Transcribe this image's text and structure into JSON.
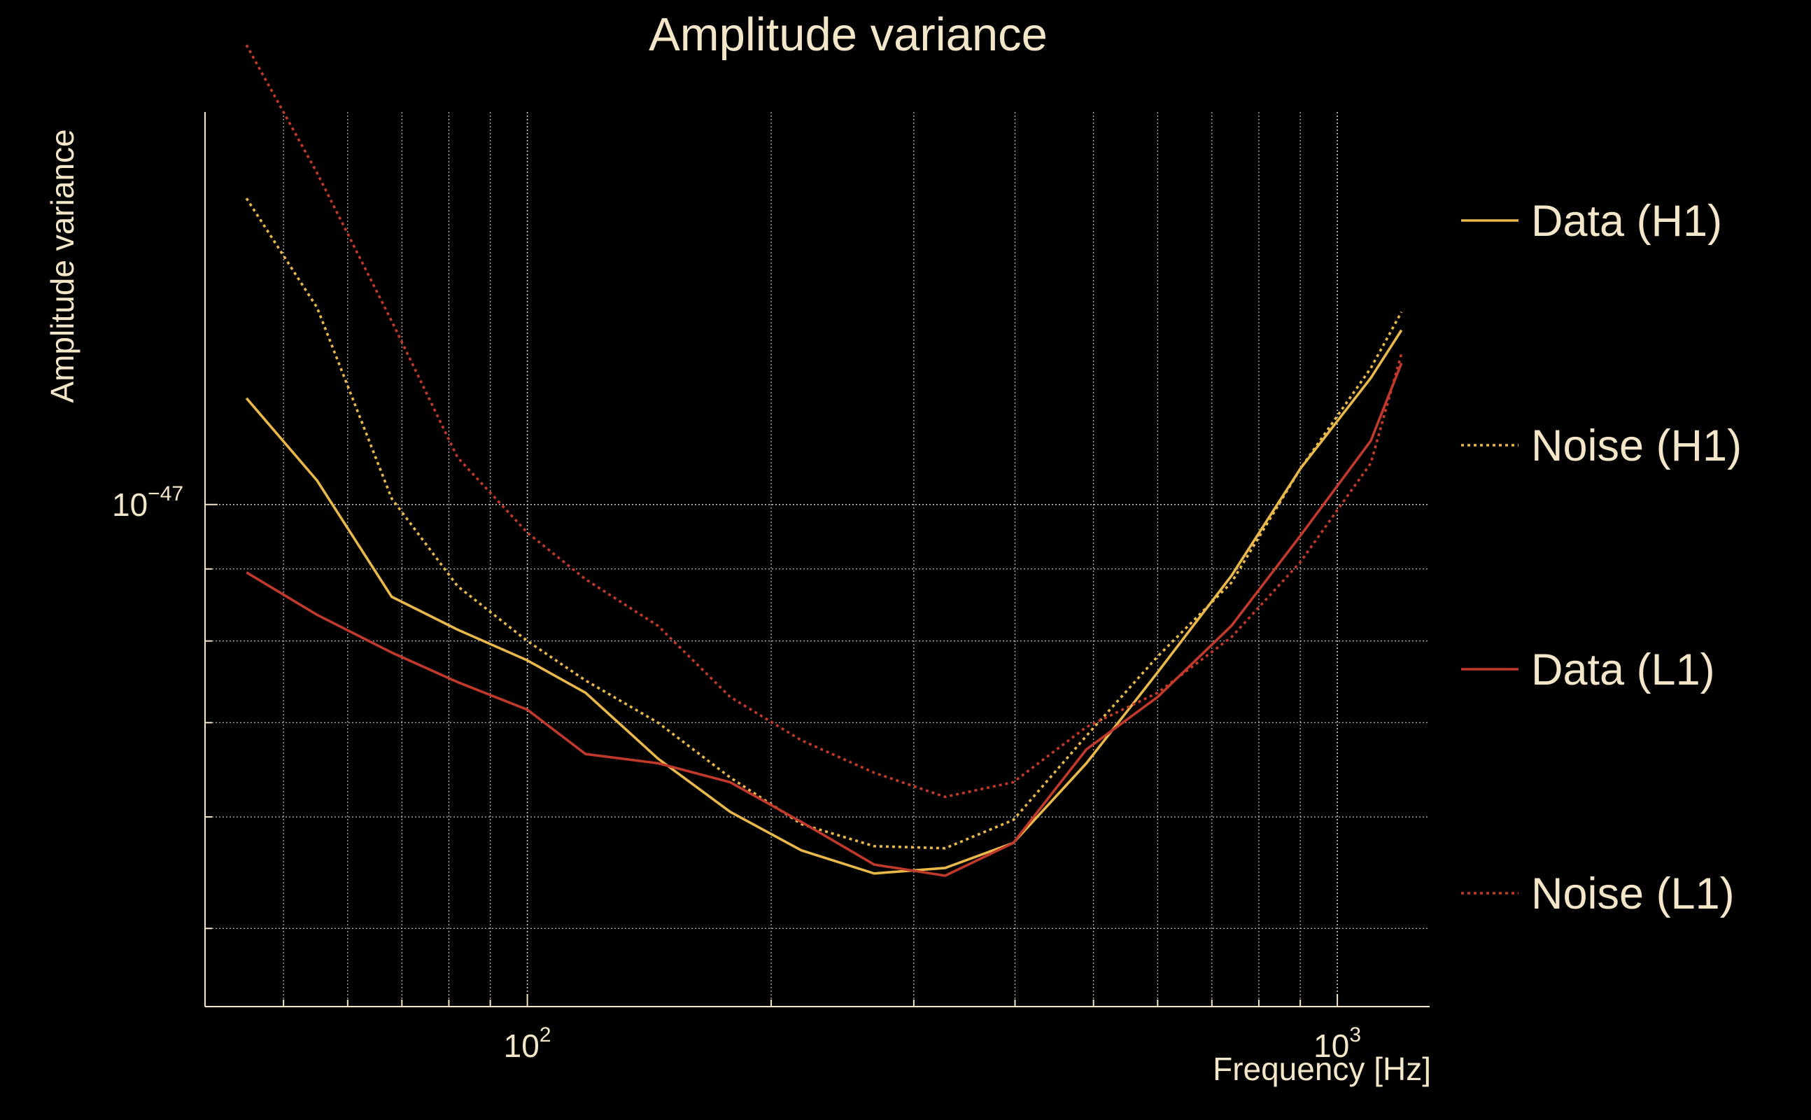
{
  "chart_data": {
    "type": "line",
    "title": "Amplitude variance",
    "xlabel": "Frequency [Hz]",
    "ylabel": "Amplitude variance",
    "xscale": "log",
    "yscale": "log",
    "xlim": [
      40,
      1300
    ],
    "ylim": [
      4.4e-48,
      1.9e-47
    ],
    "grid": true,
    "legend_position": "right",
    "x_ticks": [
      {
        "base": "10",
        "exp": "2",
        "value": 100
      },
      {
        "base": "10",
        "exp": "3",
        "value": 1000
      }
    ],
    "y_ticks": [
      {
        "base": "10",
        "exp": "−47",
        "value": 1e-47
      }
    ],
    "x": [
      45,
      55,
      68,
      82,
      100,
      118,
      145,
      178,
      218,
      268,
      328,
      398,
      490,
      600,
      740,
      900,
      1100,
      1200
    ],
    "series": [
      {
        "name": "Data (H1)",
        "color": "#e8b84a",
        "dash": "solid",
        "values": [
          1.19e-47,
          1.04e-47,
          8.6e-48,
          8.15e-48,
          7.75e-48,
          7.35e-48,
          6.6e-48,
          6.05e-48,
          5.68e-48,
          5.47e-48,
          5.52e-48,
          5.75e-48,
          6.55e-48,
          7.6e-48,
          8.9e-48,
          1.06e-47,
          1.23e-47,
          1.33e-47
        ]
      },
      {
        "name": "Noise (H1)",
        "color": "#e8b84a",
        "dash": "dotted",
        "values": [
          1.65e-47,
          1.38e-47,
          1.01e-47,
          8.75e-48,
          8e-48,
          7.5e-48,
          7e-48,
          6.4e-48,
          5.93e-48,
          5.72e-48,
          5.7e-48,
          5.97e-48,
          6.85e-48,
          7.8e-48,
          8.8e-48,
          1.06e-47,
          1.25e-47,
          1.37e-47
        ]
      },
      {
        "name": "Data (L1)",
        "color": "#c0392b",
        "dash": "solid",
        "values": [
          8.95e-48,
          8.35e-48,
          7.85e-48,
          7.48e-48,
          7.15e-48,
          6.65e-48,
          6.55e-48,
          6.35e-48,
          5.95e-48,
          5.55e-48,
          5.45e-48,
          5.75e-48,
          6.7e-48,
          7.3e-48,
          8.2e-48,
          9.5e-48,
          1.11e-47,
          1.26e-47
        ]
      },
      {
        "name": "Noise (L1)",
        "color": "#c0392b",
        "dash": "dotted",
        "values": [
          2.12e-47,
          1.72e-47,
          1.35e-47,
          1.08e-47,
          9.55e-48,
          8.85e-48,
          8.2e-48,
          7.3e-48,
          6.8e-48,
          6.45e-48,
          6.2e-48,
          6.35e-48,
          6.95e-48,
          7.35e-48,
          8.05e-48,
          9.1e-48,
          1.07e-47,
          1.28e-47
        ]
      }
    ]
  }
}
